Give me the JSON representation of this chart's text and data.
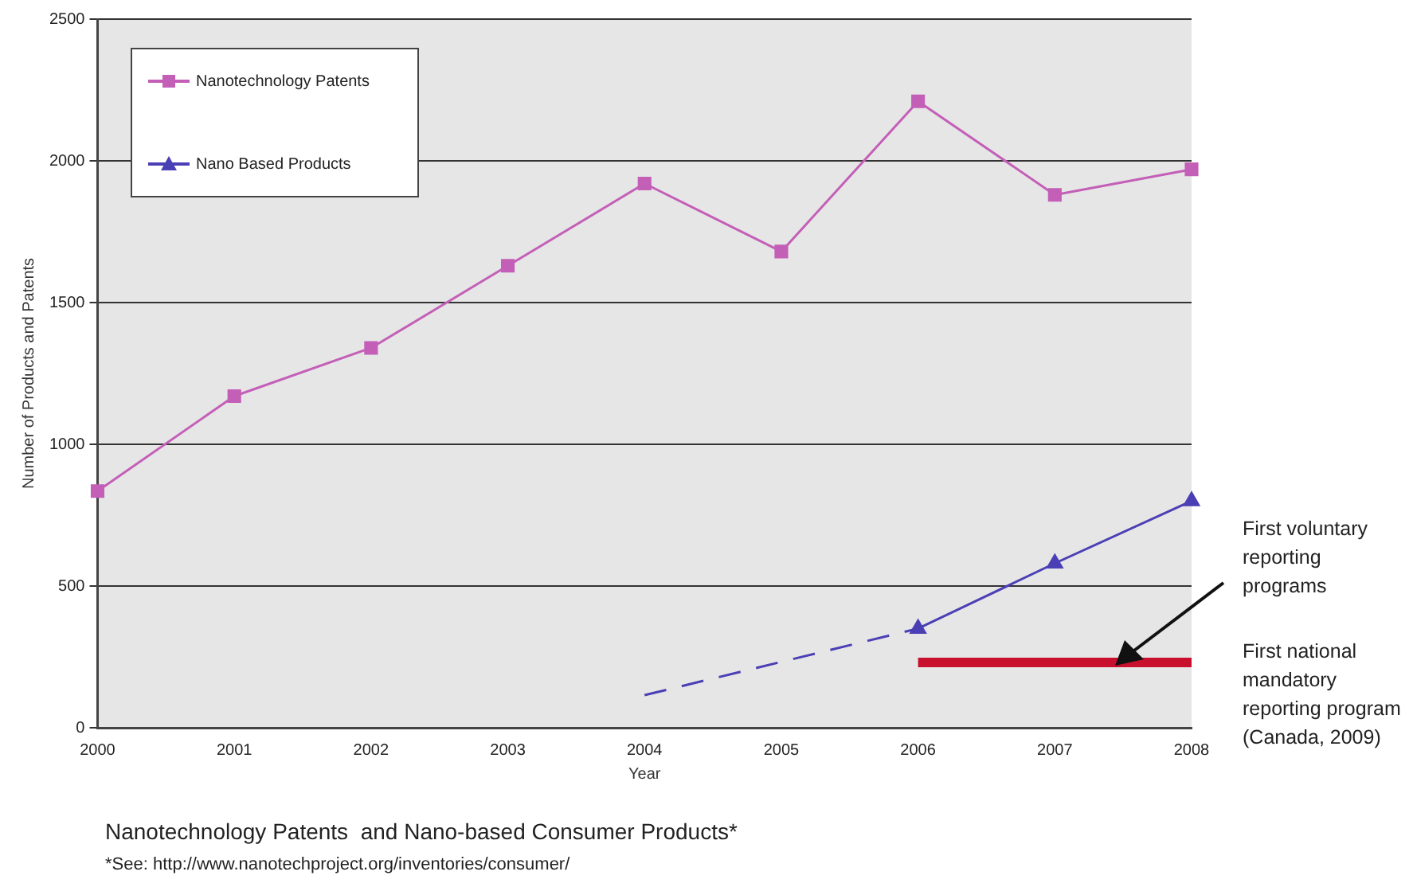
{
  "chart_data": {
    "type": "line",
    "title": "Nanotechnology Patents  and Nano-based Consumer Products*",
    "xlabel": "Year",
    "ylabel": "Number of Products and Patents",
    "categories": [
      "2000",
      "2001",
      "2002",
      "2003",
      "2004",
      "2005",
      "2006",
      "2007",
      "2008"
    ],
    "series": [
      {
        "name": "Nanotechnology Patents",
        "color": "#c45fb8",
        "marker": "square",
        "line_style": "solid",
        "values": [
          835,
          1170,
          1340,
          1630,
          1920,
          1680,
          2210,
          1880,
          1970
        ]
      },
      {
        "name": "Nano Based Products",
        "color": "#4b3fb5",
        "marker": "triangle",
        "line_style": "solid",
        "values": [
          null,
          null,
          null,
          null,
          null,
          null,
          350,
          580,
          800
        ]
      },
      {
        "color": "#4b3fb5",
        "marker": "none",
        "line_style": "dashed",
        "values": [
          null,
          null,
          null,
          null,
          115,
          null,
          350,
          null,
          null
        ]
      },
      {
        "color": "#c8102e",
        "marker": "none",
        "line_style": "solid",
        "values": [
          null,
          null,
          null,
          null,
          null,
          null,
          230,
          230,
          230
        ]
      }
    ],
    "ylim": [
      0,
      2500
    ],
    "yticks": [
      0,
      500,
      1000,
      1500,
      2000,
      2500
    ],
    "grid": "y",
    "legend": "top left",
    "annotations": [
      "First voluntary reporting programs",
      "First national mandatory reporting program (Canada, 2009)",
      "*See: http://www.nanotechproject.org/inventories/consumer/"
    ]
  }
}
